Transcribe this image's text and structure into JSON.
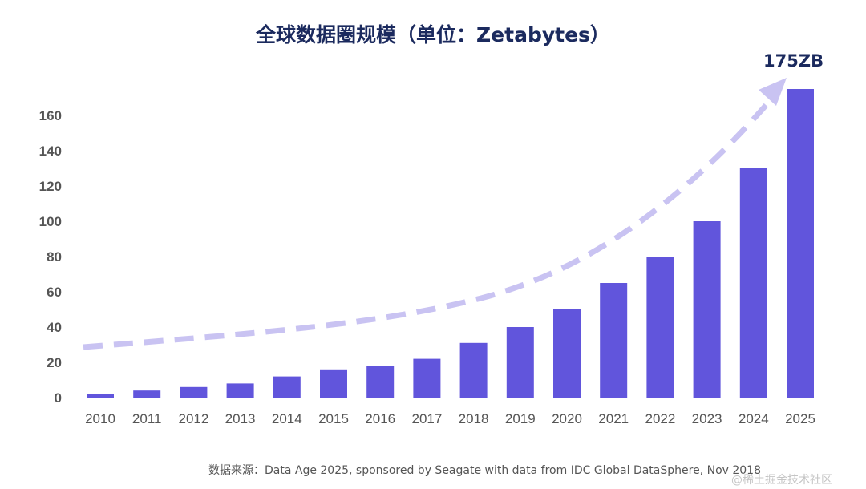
{
  "page": {
    "title": "全球数据圈规模（单位：Zetabytes）",
    "peak_label": "175ZB",
    "source": "数据来源：Data Age 2025, sponsored by Seagate with data from IDC Global DataSphere, Nov 2018",
    "watermark": "@稀土掘金技术社区"
  },
  "chart_data": {
    "type": "bar",
    "title": "全球数据圈规模（单位：Zetabytes）",
    "xlabel": "",
    "ylabel": "",
    "categories": [
      "2010",
      "2011",
      "2012",
      "2013",
      "2014",
      "2015",
      "2016",
      "2017",
      "2018",
      "2019",
      "2020",
      "2021",
      "2022",
      "2023",
      "2024",
      "2025"
    ],
    "values": [
      2,
      4,
      6,
      8,
      12,
      16,
      18,
      22,
      31,
      40,
      50,
      65,
      80,
      100,
      130,
      175
    ],
    "ylim": [
      0,
      175
    ],
    "yticks": [
      0,
      20,
      40,
      60,
      80,
      100,
      120,
      140,
      160
    ],
    "grid": false,
    "legend": "none",
    "annotation": "175ZB",
    "colors": {
      "bar": "#6155dc",
      "trend_arrow": "#c9c3f2",
      "axis_text": "#555555",
      "axis_line": "#d9d9d9",
      "title": "#1b2a5e"
    }
  }
}
